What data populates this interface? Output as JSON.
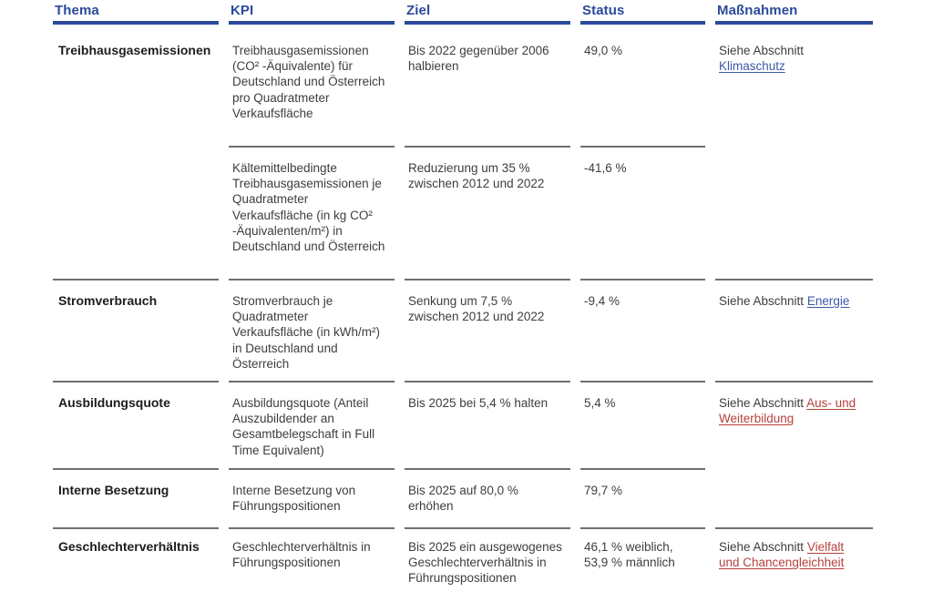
{
  "colors": {
    "header_blue": "#2b4a9b",
    "body_text": "#3d3d3c",
    "thema_text": "#1d1d1b",
    "rule_gray": "#6f6f6f",
    "link_blue": "#3a5aa9",
    "link_red": "#b5413c"
  },
  "table": {
    "headers": [
      "Thema",
      "KPI",
      "Ziel",
      "Status",
      "Maßnahmen"
    ],
    "rows": [
      {
        "thema": "Treibhausgasemissionen",
        "kpi": "Treibhausgasemissionen (CO² -Äquivalente) für Deutschland und Österreich pro Quadratmeter Verkaufsfläche",
        "ziel": "Bis 2022 gegenüber 2006 halbieren",
        "status": "49,0 %",
        "massnahmen_text": "Siehe Abschnitt",
        "massnahmen_link": "Klimaschutz"
      },
      {
        "thema": "",
        "kpi": "Kältemittelbedingte Treibhausgasemissionen je Quadratmeter Verkaufsfläche (in kg CO² -Äquivalenten/m²) in Deutschland und Österreich",
        "ziel": "Reduzierung um 35 % zwischen 2012 und 2022",
        "status": "-41,6 %",
        "massnahmen_text": "",
        "massnahmen_link": ""
      },
      {
        "thema": "Stromverbrauch",
        "kpi": "Stromverbrauch je Quadratmeter Verkaufsfläche (in kWh/m²) in Deutschland und Österreich",
        "ziel": "Senkung um 7,5 % zwischen 2012 und 2022",
        "status": "-9,4 %",
        "massnahmen_text": "Siehe Abschnitt",
        "massnahmen_link": "Energie"
      },
      {
        "thema": "Ausbildungsquote",
        "kpi": "Ausbildungsquote (Anteil Auszubildender an Gesamtbelegschaft in Full Time Equivalent)",
        "ziel": "Bis 2025 bei 5,4 % halten",
        "status": "5,4 %",
        "massnahmen_text": "Siehe Abschnitt",
        "massnahmen_link": "Aus- und Weiterbildung"
      },
      {
        "thema": "Interne Besetzung",
        "kpi": "Interne Besetzung von Führungspositionen",
        "ziel": "Bis 2025 auf 80,0 % erhöhen",
        "status": "79,7 %",
        "massnahmen_text": "",
        "massnahmen_link": ""
      },
      {
        "thema": "Geschlechterverhältnis",
        "kpi": "Geschlechterverhältnis in Führungspositionen",
        "ziel": "Bis 2025 ein ausgewogenes Geschlechterverhältnis in Führungspositionen",
        "status": "46,1 % weiblich, 53,9 % männlich",
        "massnahmen_text": "Siehe Abschnitt",
        "massnahmen_link": "Vielfalt und Chancengleichheit"
      }
    ]
  }
}
